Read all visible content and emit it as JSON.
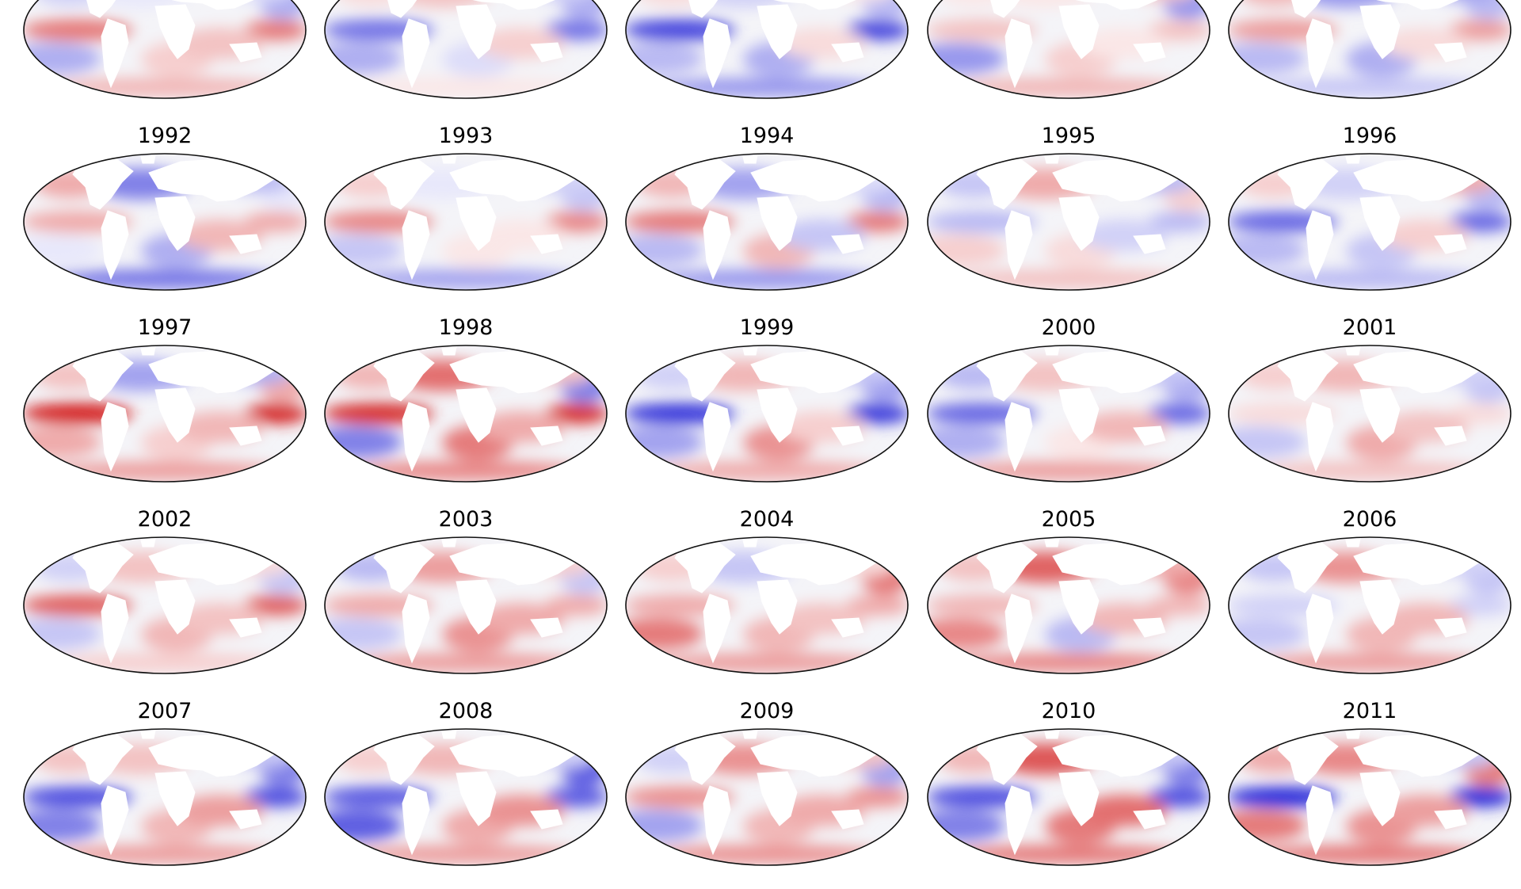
{
  "figure": {
    "colormap": {
      "negative": "#1a1ad6",
      "neutral": "#ffffff",
      "positive": "#d01010"
    },
    "coast_color": "#111111",
    "rows": [
      {
        "panels": [
          {
            "year": "",
            "pattern": [
              0.55,
              -0.35,
              -0.1,
              0.2,
              0.25,
              -0.15,
              0.3,
              -0.2
            ]
          },
          {
            "year": "",
            "pattern": [
              -0.6,
              -0.35,
              0.25,
              -0.15,
              0.2,
              -0.2,
              0.1,
              0.15
            ]
          },
          {
            "year": "",
            "pattern": [
              -0.8,
              -0.3,
              -0.2,
              -0.35,
              0.15,
              0.1,
              -0.45,
              0.15
            ]
          },
          {
            "year": "",
            "pattern": [
              0.25,
              -0.45,
              0.1,
              0.2,
              0.1,
              0.25,
              0.3,
              0.1
            ]
          },
          {
            "year": "",
            "pattern": [
              0.4,
              -0.3,
              -0.45,
              -0.35,
              0.15,
              -0.4,
              -0.25,
              0.3
            ]
          }
        ]
      },
      {
        "panels": [
          {
            "year": "1992",
            "pattern": [
              0.35,
              -0.1,
              -0.55,
              -0.35,
              0.3,
              -0.3,
              -0.6,
              0.35
            ]
          },
          {
            "year": "1993",
            "pattern": [
              0.5,
              -0.25,
              -0.1,
              0.1,
              0.1,
              -0.2,
              -0.4,
              0.2
            ]
          },
          {
            "year": "1994",
            "pattern": [
              0.55,
              -0.3,
              -0.4,
              0.3,
              -0.25,
              -0.15,
              -0.45,
              0.3
            ]
          },
          {
            "year": "1995",
            "pattern": [
              -0.3,
              0.2,
              0.35,
              0.15,
              -0.2,
              -0.3,
              0.25,
              -0.25
            ]
          },
          {
            "year": "1996",
            "pattern": [
              -0.65,
              -0.3,
              -0.2,
              -0.25,
              0.2,
              0.35,
              -0.3,
              0.2
            ]
          }
        ]
      },
      {
        "panels": [
          {
            "year": "1997",
            "pattern": [
              0.9,
              0.35,
              -0.4,
              0.2,
              0.3,
              -0.35,
              0.4,
              0.25
            ]
          },
          {
            "year": "1998",
            "pattern": [
              0.85,
              -0.55,
              0.6,
              0.55,
              0.35,
              0.25,
              0.5,
              0.3
            ]
          },
          {
            "year": "1999",
            "pattern": [
              -0.85,
              -0.4,
              0.3,
              0.45,
              0.2,
              -0.25,
              0.35,
              -0.2
            ]
          },
          {
            "year": "2000",
            "pattern": [
              -0.65,
              -0.35,
              0.25,
              0.1,
              0.3,
              -0.25,
              0.4,
              -0.3
            ]
          },
          {
            "year": "2001",
            "pattern": [
              0.15,
              -0.25,
              0.3,
              0.35,
              0.25,
              -0.2,
              0.25,
              0.2
            ]
          }
        ]
      },
      {
        "panels": [
          {
            "year": "2002",
            "pattern": [
              0.65,
              -0.25,
              0.25,
              0.3,
              0.25,
              0.15,
              0.2,
              -0.2
            ]
          },
          {
            "year": "2003",
            "pattern": [
              0.35,
              -0.25,
              0.4,
              0.45,
              0.35,
              0.2,
              0.4,
              -0.3
            ]
          },
          {
            "year": "2004",
            "pattern": [
              0.35,
              0.55,
              -0.25,
              0.3,
              0.25,
              0.15,
              0.4,
              0.2
            ]
          },
          {
            "year": "2005",
            "pattern": [
              0.3,
              0.5,
              0.65,
              -0.3,
              0.3,
              0.35,
              0.5,
              0.25
            ]
          },
          {
            "year": "2006",
            "pattern": [
              -0.2,
              -0.25,
              0.45,
              0.3,
              0.3,
              -0.2,
              0.4,
              -0.25
            ]
          }
        ]
      },
      {
        "panels": [
          {
            "year": "2007",
            "pattern": [
              -0.75,
              -0.55,
              0.25,
              0.3,
              0.4,
              -0.25,
              0.4,
              0.25
            ]
          },
          {
            "year": "2008",
            "pattern": [
              -0.7,
              -0.7,
              0.3,
              0.35,
              0.45,
              -0.2,
              0.4,
              0.2
            ]
          },
          {
            "year": "2009",
            "pattern": [
              0.45,
              -0.4,
              0.45,
              0.3,
              0.35,
              0.25,
              0.45,
              -0.2
            ]
          },
          {
            "year": "2010",
            "pattern": [
              -0.75,
              -0.55,
              0.7,
              0.55,
              0.6,
              -0.25,
              0.55,
              0.3
            ]
          },
          {
            "year": "2011",
            "pattern": [
              -0.9,
              0.55,
              0.5,
              0.45,
              0.4,
              -0.25,
              0.55,
              0.35
            ]
          }
        ]
      }
    ]
  }
}
